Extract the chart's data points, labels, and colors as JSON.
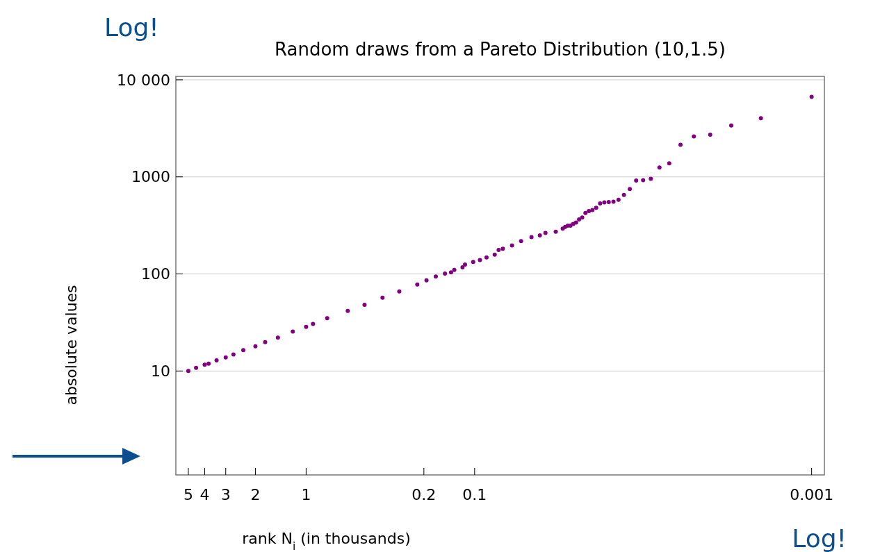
{
  "chart_data": {
    "type": "scatter",
    "title": "Random draws from a Pareto Distribution (10,1.5)",
    "xlabel": "rank N$_{i}$ (in thousands)",
    "ylabel": "absolute values",
    "annotations": [
      "Log!",
      "Log!"
    ],
    "log": "xy",
    "grid": "y",
    "marker": "circle",
    "xlim": [
      5.93,
      0.00084
    ],
    "ylim": [
      0.85,
      10850
    ],
    "xticks": [
      5,
      4,
      3,
      2,
      1,
      0.2,
      0.1,
      0.001
    ],
    "yticks": [
      10,
      100,
      1000,
      {
        "value": 10000,
        "label": "10 000"
      }
    ],
    "series": [
      {
        "color": "#800080",
        "x": [
          5,
          4.5,
          4,
          3.79,
          3.4,
          3,
          2.7,
          2.36,
          2,
          1.75,
          1.47,
          1.2,
          1,
          0.91,
          0.75,
          0.566,
          0.45,
          0.352,
          0.28,
          0.219,
          0.193,
          0.17,
          0.15,
          0.138,
          0.132,
          0.118,
          0.114,
          0.102,
          0.093,
          0.085,
          0.076,
          0.072,
          0.068,
          0.06,
          0.053,
          0.046,
          0.041,
          0.038,
          0.033,
          0.03,
          0.029,
          0.028,
          0.027,
          0.026,
          0.025,
          0.024,
          0.023,
          0.022,
          0.021,
          0.02,
          0.019,
          0.018,
          0.017,
          0.016,
          0.015,
          0.014,
          0.013,
          0.012,
          0.011,
          0.01,
          0.009,
          0.008,
          0.007,
          0.006,
          0.005,
          0.004,
          0.003,
          0.002,
          0.001
        ],
        "values": [
          10,
          10.8,
          11.6,
          11.9,
          12.9,
          13.8,
          14.8,
          16.4,
          18,
          19.8,
          22.1,
          25.5,
          28.5,
          30.6,
          35,
          41.6,
          48,
          56.9,
          66,
          78,
          86,
          94,
          101,
          104,
          110,
          117,
          125,
          133,
          139,
          148,
          158,
          177,
          182,
          197,
          218,
          240,
          250,
          264,
          272,
          293,
          306,
          315,
          315,
          327,
          338,
          365,
          381,
          425,
          444,
          456,
          480,
          532,
          547,
          550,
          556,
          581,
          652,
          751,
          916,
          925,
          957,
          1250,
          1380,
          2140,
          2610,
          2720,
          3380,
          4030,
          6670
        ]
      }
    ]
  }
}
